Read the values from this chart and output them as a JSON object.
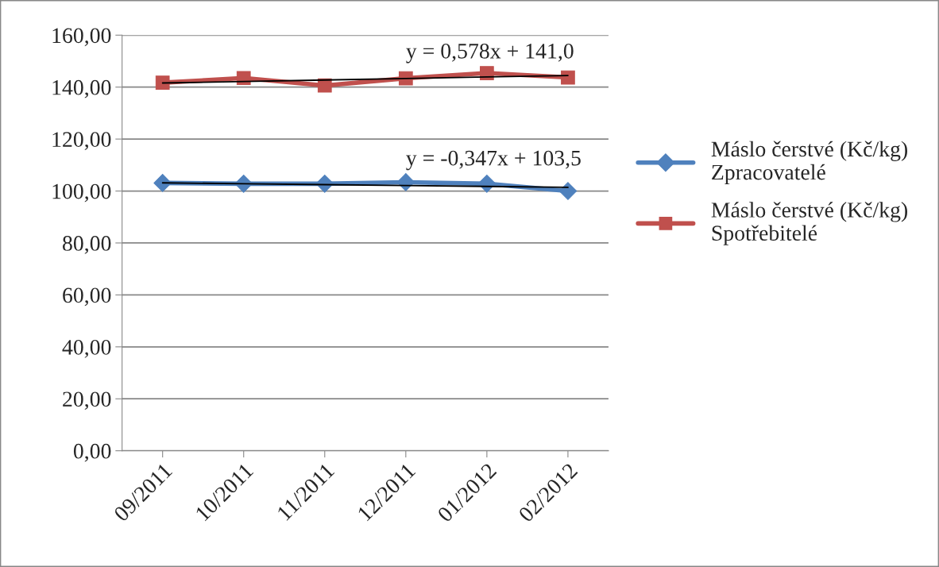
{
  "chart_data": {
    "type": "line",
    "categories": [
      "09/2011",
      "10/2011",
      "11/2011",
      "12/2011",
      "01/2012",
      "02/2012"
    ],
    "series": [
      {
        "name": "Máslo čerstvé (Kč/kg)\nZpracovatelé",
        "color": "#4f81bd",
        "marker": "diamond",
        "values": [
          103.1,
          102.8,
          102.8,
          103.4,
          102.8,
          100.0
        ]
      },
      {
        "name": "Máslo čerstvé (Kč/kg)\nSpotřebitelé",
        "color": "#c0504d",
        "marker": "square",
        "values": [
          141.7,
          143.5,
          140.6,
          143.4,
          145.4,
          143.7
        ]
      },
      {
        "color": "#000000",
        "marker": "none",
        "values": [
          103.15,
          102.81,
          102.46,
          102.11,
          101.77,
          101.42
        ]
      },
      {
        "color": "#000000",
        "marker": "none",
        "values": [
          141.58,
          142.16,
          142.73,
          143.31,
          143.89,
          144.47
        ]
      }
    ],
    "annotations": [
      {
        "text": "y = -0,347x + 103,5",
        "x": "12/2011",
        "y": 102.11
      },
      {
        "text": "y = 0,578x + 141,0",
        "x": "12/2011",
        "y": 143.31
      }
    ],
    "ylim": [
      0,
      160
    ],
    "yticks": [
      {
        "value": 0,
        "label": "0,00"
      },
      {
        "value": 20,
        "label": "20,00"
      },
      {
        "value": 40,
        "label": "40,00"
      },
      {
        "value": 60,
        "label": "60,00"
      },
      {
        "value": 80,
        "label": "80,00"
      },
      {
        "value": 100,
        "label": "100,00"
      },
      {
        "value": 120,
        "label": "120,00"
      },
      {
        "value": 140,
        "label": "140,00"
      },
      {
        "value": 160,
        "label": "160,00"
      }
    ],
    "grid": "y",
    "legend": "right",
    "line_style": "solid"
  }
}
